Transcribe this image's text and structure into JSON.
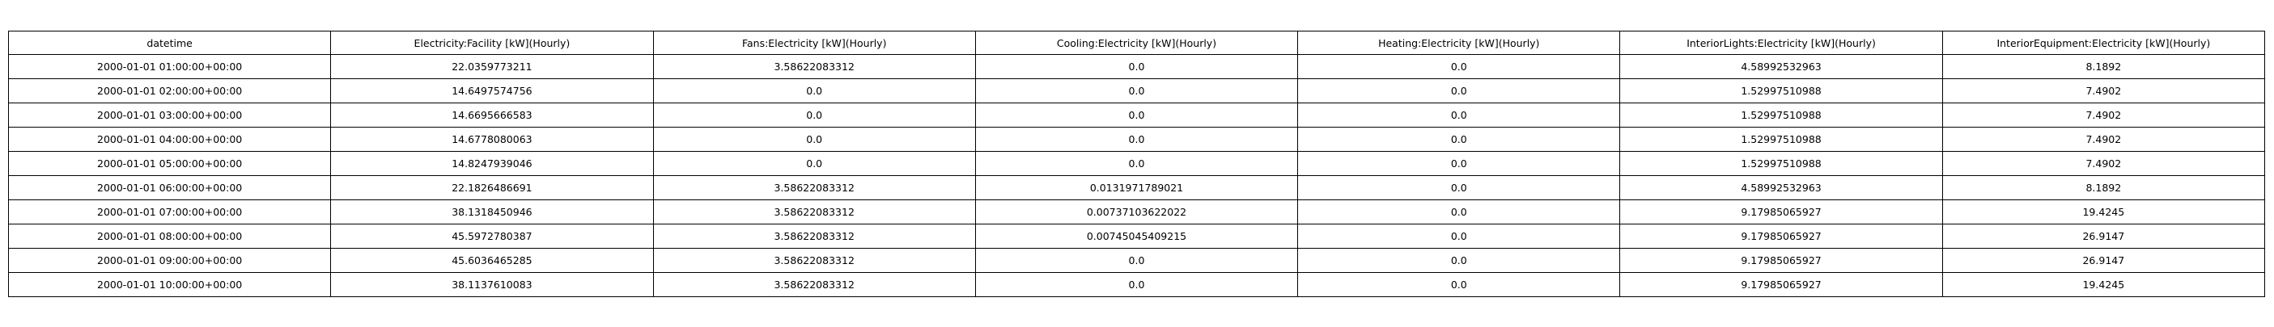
{
  "chart_data": {
    "type": "table",
    "columns": [
      "datetime",
      "Electricity:Facility [kW](Hourly)",
      "Fans:Electricity [kW](Hourly)",
      "Cooling:Electricity [kW](Hourly)",
      "Heating:Electricity [kW](Hourly)",
      "InteriorLights:Electricity [kW](Hourly)",
      "InteriorEquipment:Electricity [kW](Hourly)"
    ],
    "rows": [
      [
        "2000-01-01 01:00:00+00:00",
        "22.0359773211",
        "3.58622083312",
        "0.0",
        "0.0",
        "4.58992532963",
        "8.1892"
      ],
      [
        "2000-01-01 02:00:00+00:00",
        "14.6497574756",
        "0.0",
        "0.0",
        "0.0",
        "1.52997510988",
        "7.4902"
      ],
      [
        "2000-01-01 03:00:00+00:00",
        "14.6695666583",
        "0.0",
        "0.0",
        "0.0",
        "1.52997510988",
        "7.4902"
      ],
      [
        "2000-01-01 04:00:00+00:00",
        "14.6778080063",
        "0.0",
        "0.0",
        "0.0",
        "1.52997510988",
        "7.4902"
      ],
      [
        "2000-01-01 05:00:00+00:00",
        "14.8247939046",
        "0.0",
        "0.0",
        "0.0",
        "1.52997510988",
        "7.4902"
      ],
      [
        "2000-01-01 06:00:00+00:00",
        "22.1826486691",
        "3.58622083312",
        "0.0131971789021",
        "0.0",
        "4.58992532963",
        "8.1892"
      ],
      [
        "2000-01-01 07:00:00+00:00",
        "38.1318450946",
        "3.58622083312",
        "0.00737103622022",
        "0.0",
        "9.17985065927",
        "19.4245"
      ],
      [
        "2000-01-01 08:00:00+00:00",
        "45.5972780387",
        "3.58622083312",
        "0.00745045409215",
        "0.0",
        "9.17985065927",
        "26.9147"
      ],
      [
        "2000-01-01 09:00:00+00:00",
        "45.6036465285",
        "3.58622083312",
        "0.0",
        "0.0",
        "9.17985065927",
        "26.9147"
      ],
      [
        "2000-01-01 10:00:00+00:00",
        "38.1137610083",
        "3.58622083312",
        "0.0",
        "0.0",
        "9.17985065927",
        "19.4245"
      ]
    ]
  }
}
